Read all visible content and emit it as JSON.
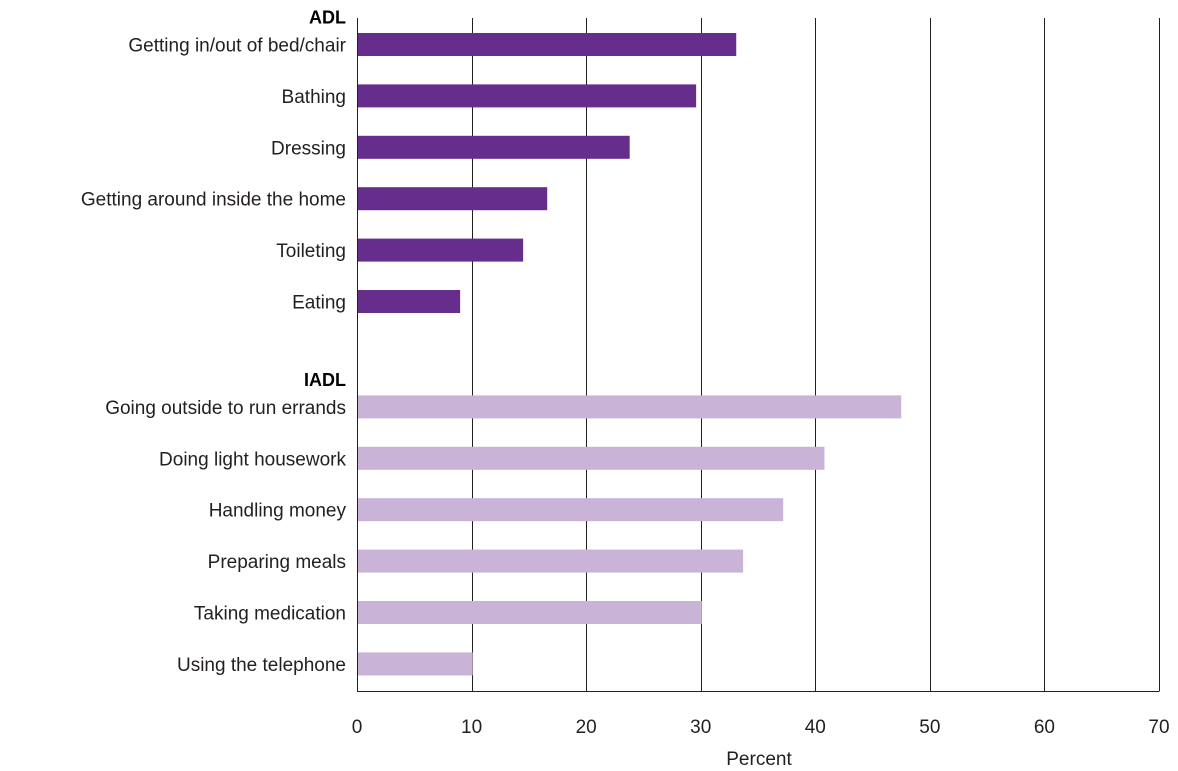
{
  "chart_data": {
    "type": "bar",
    "orientation": "horizontal",
    "xlabel": "Percent",
    "ylabel": "",
    "xlim": [
      0,
      70
    ],
    "xticks": [
      0,
      10,
      20,
      30,
      40,
      50,
      60,
      70
    ],
    "grid": "vertical",
    "groups": [
      {
        "name": "ADL",
        "color": "#662d8c",
        "categories": [
          "Getting in/out of bed/chair",
          "Bathing ",
          "Dressing",
          "Getting around inside the home",
          "Toileting",
          "Eating"
        ],
        "values": [
          33.1,
          29.6,
          23.8,
          16.6,
          14.5,
          9.0
        ]
      },
      {
        "name": "IADL",
        "color": "#c9b3d7",
        "categories": [
          "Going outside to run errands",
          "Doing light housework",
          "Handling money",
          "Preparing meals",
          "Taking medication",
          "Using the telephone"
        ],
        "values": [
          47.5,
          40.8,
          37.2,
          33.7,
          30.1,
          10.1
        ]
      }
    ]
  }
}
